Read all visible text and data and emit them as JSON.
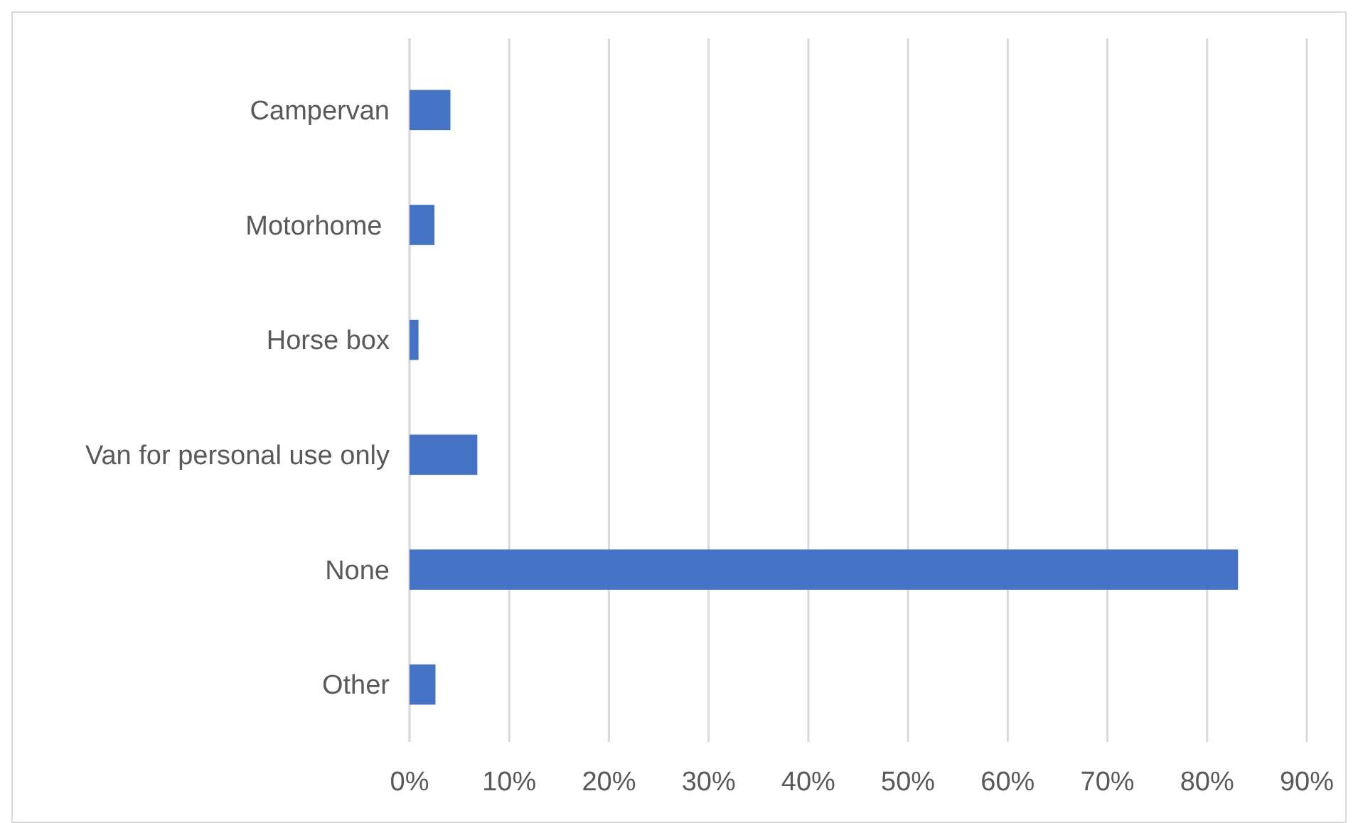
{
  "chart_data": {
    "type": "bar",
    "orientation": "horizontal",
    "categories": [
      "Campervan",
      "Motorhome ",
      "Horse box",
      "Van for personal use only",
      "None",
      "Other"
    ],
    "values": [
      4.1,
      2.5,
      0.9,
      6.8,
      83.1,
      2.6
    ],
    "color": "#4472c4",
    "xlim": [
      0,
      90
    ],
    "xticks": [
      {
        "value": 0,
        "label": "0%"
      },
      {
        "value": 10,
        "label": "10%"
      },
      {
        "value": 20,
        "label": "20%"
      },
      {
        "value": 30,
        "label": "30%"
      },
      {
        "value": 40,
        "label": "40%"
      },
      {
        "value": 50,
        "label": "50%"
      },
      {
        "value": 60,
        "label": "60%"
      },
      {
        "value": 70,
        "label": "70%"
      },
      {
        "value": 80,
        "label": "80%"
      },
      {
        "value": 90,
        "label": "90%"
      }
    ],
    "grid": "x"
  }
}
